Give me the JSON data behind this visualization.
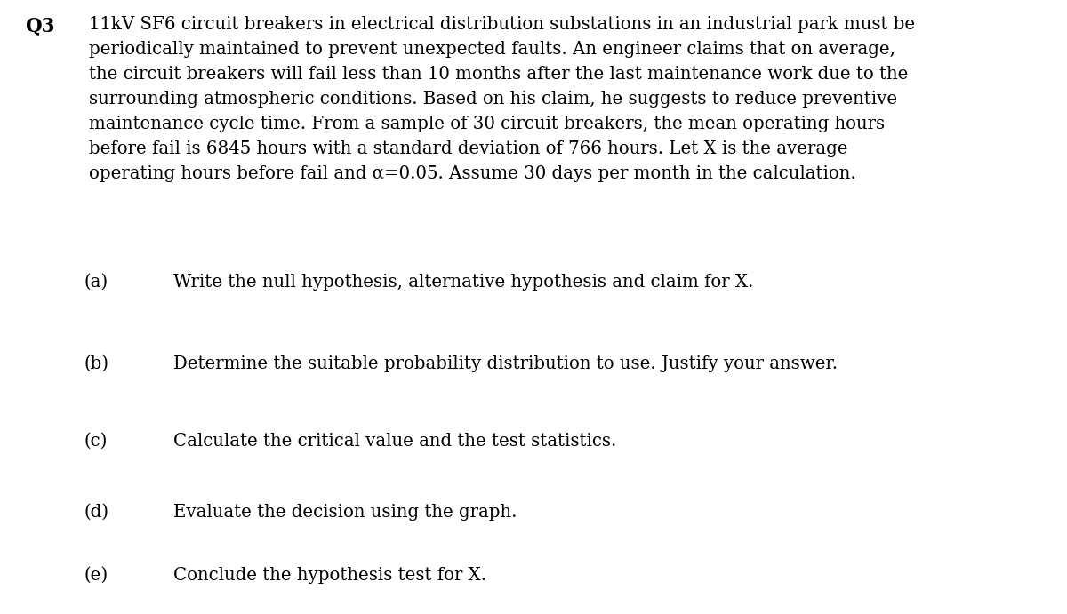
{
  "background_color": "#ffffff",
  "q_label": "Q3",
  "paragraph": "11kV SF6 circuit breakers in electrical distribution substations in an industrial park must be\nperiodically maintained to prevent unexpected faults. An engineer claims that on average,\nthe circuit breakers will fail less than 10 months after the last maintenance work due to the\nsurrounding atmospheric conditions. Based on his claim, he suggests to reduce preventive\nmaintenance cycle time. From a sample of 30 circuit breakers, the mean operating hours\nbefore fail is 6845 hours with a standard deviation of 766 hours. Let X is the average\noperating hours before fail and α=0.05. Assume 30 days per month in the calculation.",
  "sub_items": [
    {
      "label": "(a)",
      "text": "Write the null hypothesis, alternative hypothesis and claim for X."
    },
    {
      "label": "(b)",
      "text": "Determine the suitable probability distribution to use. Justify your answer."
    },
    {
      "label": "(c)",
      "text": "Calculate the critical value and the test statistics."
    },
    {
      "label": "(d)",
      "text": "Evaluate the decision using the graph."
    },
    {
      "label": "(e)",
      "text": "Conclude the hypothesis test for X."
    }
  ],
  "font_family": "DejaVu Serif",
  "font_size": 14.2,
  "font_size_q": 15.5,
  "text_color": "#000000",
  "fig_width": 12.0,
  "fig_height": 6.91,
  "dpi": 100
}
